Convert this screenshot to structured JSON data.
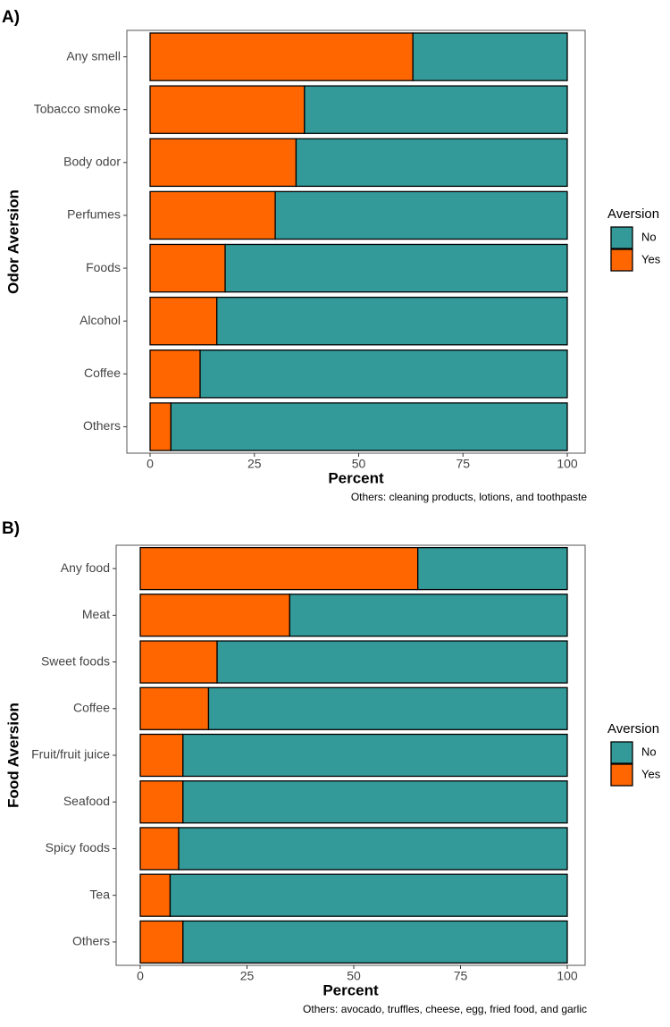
{
  "chart_data": [
    {
      "type": "stacked-bar-horizontal",
      "panel_label": "A)",
      "xlabel": "Percent",
      "ylabel": "Odor Aversion",
      "caption": "Others: cleaning products, lotions, and toothpaste",
      "legend_title": "Aversion",
      "categories": [
        "Any smell",
        "Tobacco smoke",
        "Body odor",
        "Perfumes",
        "Foods",
        "Alcohol",
        "Coffee",
        "Others"
      ],
      "series": [
        {
          "name": "No",
          "color": "#339999",
          "values": [
            37,
            63,
            65,
            70,
            82,
            84,
            88,
            95
          ]
        },
        {
          "name": "Yes",
          "color": "#ff6600",
          "values": [
            63,
            37,
            35,
            30,
            18,
            16,
            12,
            5
          ]
        }
      ],
      "xlim": [
        0,
        100
      ],
      "xticks": [
        0,
        25,
        50,
        75,
        100
      ]
    },
    {
      "type": "stacked-bar-horizontal",
      "panel_label": "B)",
      "xlabel": "Percent",
      "ylabel": "Food Aversion",
      "caption": "Others: avocado, truffles, cheese, egg, fried food, and garlic",
      "legend_title": "Aversion",
      "categories": [
        "Any food",
        "Meat",
        "Sweet foods",
        "Coffee",
        "Fruit/fruit juice",
        "Seafood",
        "Spicy foods",
        "Tea",
        "Others"
      ],
      "series": [
        {
          "name": "No",
          "color": "#339999",
          "values": [
            35,
            65,
            82,
            84,
            90,
            90,
            91,
            93,
            90
          ]
        },
        {
          "name": "Yes",
          "color": "#ff6600",
          "values": [
            65,
            35,
            18,
            16,
            10,
            10,
            9,
            7,
            10
          ]
        }
      ],
      "xlim": [
        0,
        100
      ],
      "xticks": [
        0,
        25,
        50,
        75,
        100
      ]
    }
  ]
}
